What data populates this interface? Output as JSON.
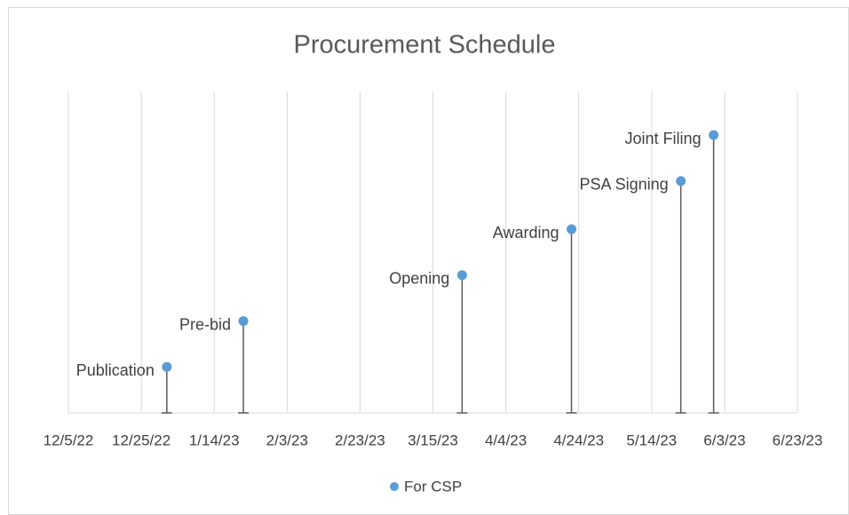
{
  "chart_data": {
    "type": "scatter",
    "title": "Procurement Schedule",
    "x": [
      "2023-01-01",
      "2023-01-22",
      "2023-03-23",
      "2023-04-22",
      "2023-05-22",
      "2023-05-31"
    ],
    "labels": [
      "Publication",
      "Pre-bid",
      "Opening",
      "Awarding",
      "PSA Signing",
      "Joint Filing"
    ],
    "series": [
      {
        "name": "For CSP",
        "color": "#5b9bd5",
        "values": [
          1,
          2,
          3,
          4,
          5.05,
          6.05
        ]
      }
    ],
    "xlim": [
      "2022-12-05",
      "2023-06-23"
    ],
    "xticks": [
      {
        "value": "2022-12-05",
        "label": "12/5/22"
      },
      {
        "value": "2022-12-25",
        "label": "12/25/22"
      },
      {
        "value": "2023-01-14",
        "label": "1/14/23"
      },
      {
        "value": "2023-02-03",
        "label": "2/3/23"
      },
      {
        "value": "2023-02-23",
        "label": "2/23/23"
      },
      {
        "value": "2023-03-15",
        "label": "3/15/23"
      },
      {
        "value": "2023-04-04",
        "label": "4/4/23"
      },
      {
        "value": "2023-04-24",
        "label": "4/24/23"
      },
      {
        "value": "2023-05-14",
        "label": "5/14/23"
      },
      {
        "value": "2023-06-03",
        "label": "6/3/23"
      },
      {
        "value": "2023-06-23",
        "label": "6/23/23"
      }
    ],
    "ylim": [
      0,
      7
    ],
    "grid": true,
    "legend": "bottom"
  }
}
